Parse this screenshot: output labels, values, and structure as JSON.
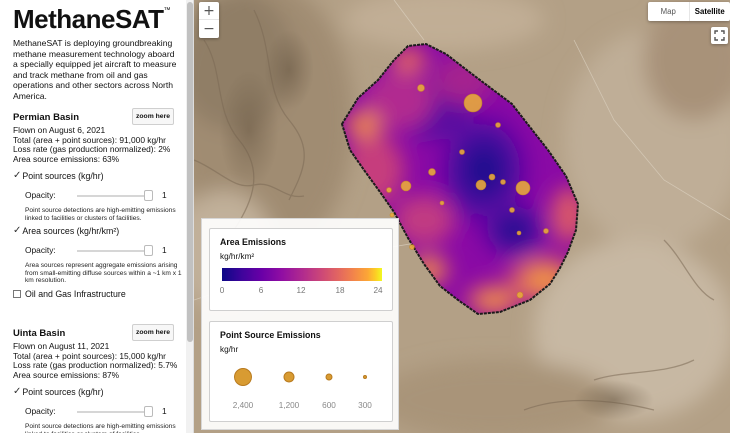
{
  "app": {
    "logo": "MethaneSAT",
    "logo_mark": "™",
    "intro": "MethaneSAT is deploying groundbreaking methane measurement technology aboard a specially equipped jet aircraft to measure and track methane from oil and gas operations and other sectors across North America."
  },
  "basins": [
    {
      "title": "Permian Basin",
      "zoom_label": "zoom here",
      "stats": [
        "Flown on August 6, 2021",
        "Total (area + point sources): 91,000 kg/hr",
        "Loss rate (gas production normalized): 2%",
        "Area source emissions: 63%"
      ],
      "point_sources": {
        "label": "Point sources (kg/hr)",
        "checked": true,
        "opacity_label": "Opacity:",
        "opacity_value": "1",
        "note": "Point source detections are high-emitting emissions linked to facilities or clusters of facilities."
      },
      "area_sources": {
        "label": "Area sources (kg/hr/km²)",
        "checked": true,
        "opacity_label": "Opacity:",
        "opacity_value": "1",
        "note": "Area sources represent aggregate emissions arising from small-emitting diffuse sources within a ~1 km x 1 km resolution."
      },
      "infrastructure": {
        "label": "Oil and Gas Infrastructure",
        "checked": false
      }
    },
    {
      "title": "Uinta Basin",
      "zoom_label": "zoom here",
      "stats": [
        "Flown on August 11, 2021",
        "Total (area + point sources): 15,000 kg/hr",
        "Loss rate (gas production normalized): 5.7%",
        "Area source emissions: 87%"
      ],
      "point_sources": {
        "label": "Point sources (kg/hr)",
        "checked": true,
        "opacity_label": "Opacity:",
        "opacity_value": "1",
        "note": "Point source detections are high-emitting emissions linked to facilities or clusters of facilities."
      }
    }
  ],
  "map": {
    "zoom_in": "+",
    "zoom_out": "−",
    "map_types": [
      "Map",
      "Satellite"
    ],
    "active_map_type": "Satellite",
    "colors": {
      "terrain": "#b09a7e",
      "ramp_low": "#0c0786",
      "ramp_high": "#f0f921",
      "point_source": "#d89b32"
    }
  },
  "legend": {
    "area": {
      "title": "Area Emissions",
      "unit": "kg/hr/km²",
      "ticks": [
        "0",
        "6",
        "12",
        "18",
        "24"
      ]
    },
    "point": {
      "title": "Point Source Emissions",
      "unit": "kg/hr",
      "sizes": [
        "2,400",
        "1,200",
        "600",
        "300"
      ]
    }
  }
}
